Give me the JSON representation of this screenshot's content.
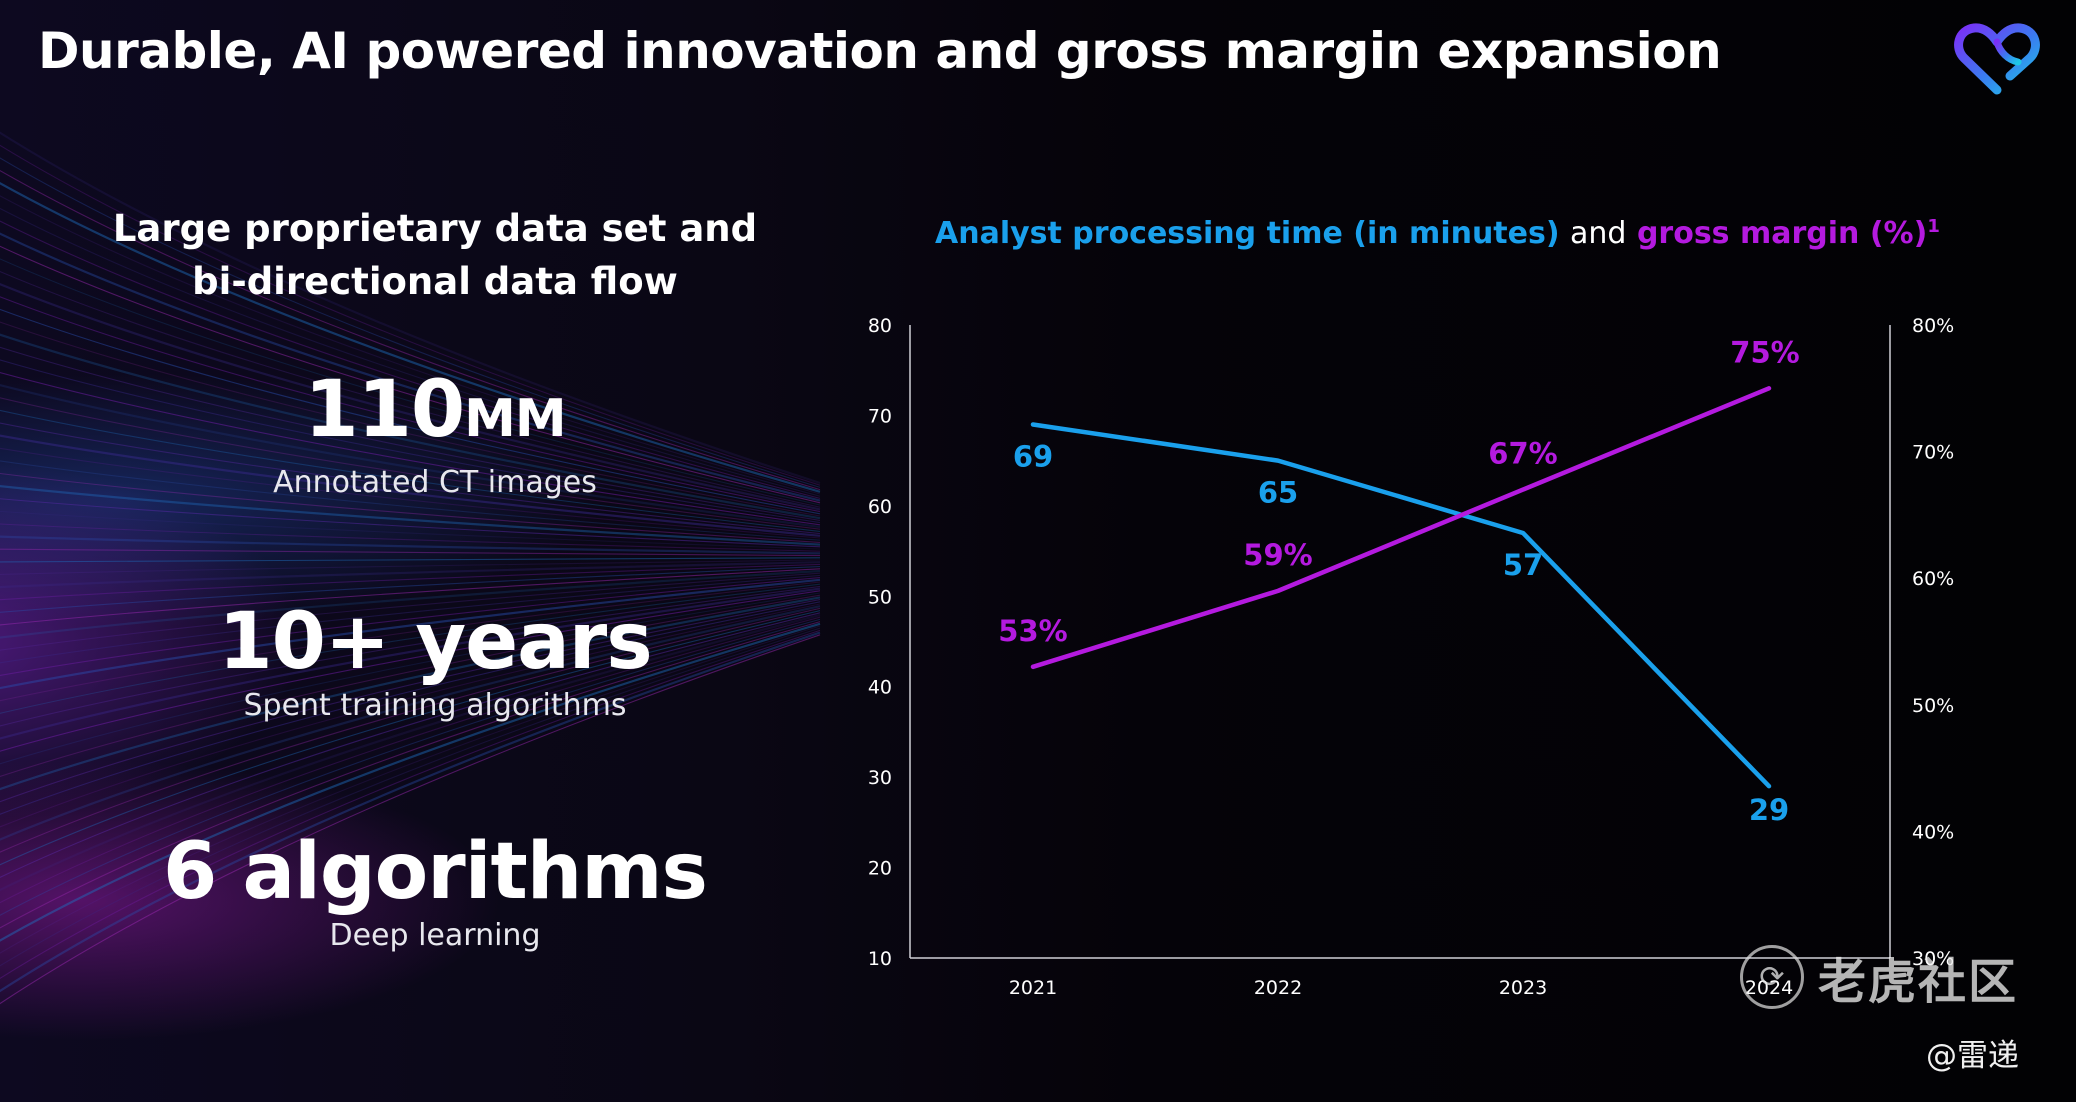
{
  "slide": {
    "title": "Durable, AI powered innovation and gross margin expansion"
  },
  "left_panel": {
    "subheading_line1": "Large proprietary data set and",
    "subheading_line2": "bi-directional data flow",
    "stats": [
      {
        "value": "110",
        "unit": "MM",
        "label": "Annotated CT images"
      },
      {
        "value": "10+ years",
        "label": "Spent training algorithms"
      },
      {
        "value": "6 algorithms",
        "label": "Deep learning"
      }
    ]
  },
  "chart_header": {
    "part1": "Analyst processing time (in minutes)",
    "joiner": "and",
    "part2": "gross margin (%)",
    "footnote": "1"
  },
  "watermark": {
    "text": "老虎社区",
    "icon": "tiger-icon",
    "handle": "@雷递"
  },
  "colors": {
    "processing_time": "#1aa0ec",
    "gross_margin": "#b41adf",
    "background": "#05030b"
  },
  "chart_data": {
    "type": "line",
    "categories": [
      "2021",
      "2022",
      "2023",
      "2024"
    ],
    "series": [
      {
        "name": "Analyst processing time (in minutes)",
        "axis": "left",
        "values": [
          69,
          65,
          57,
          29
        ],
        "labels": [
          "69",
          "65",
          "57",
          "29"
        ]
      },
      {
        "name": "gross margin (%)",
        "axis": "right",
        "values": [
          53,
          59,
          67,
          75
        ],
        "labels": [
          "53%",
          "59%",
          "67%",
          "75%"
        ]
      }
    ],
    "y_left": {
      "min": 10,
      "max": 80,
      "ticks": [
        "80",
        "70",
        "60",
        "50",
        "40",
        "30",
        "20",
        "10"
      ]
    },
    "y_right": {
      "min": 30,
      "max": 80,
      "ticks": [
        "80%",
        "70%",
        "60%",
        "50%",
        "40%",
        "30%"
      ]
    },
    "grid": false
  }
}
